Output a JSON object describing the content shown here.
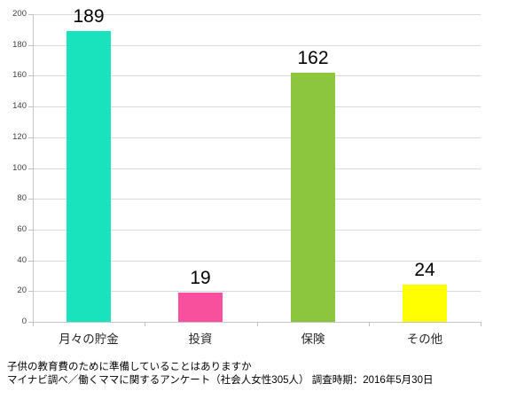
{
  "chart_data": {
    "type": "bar",
    "title": "",
    "categories": [
      "月々の貯金",
      "投資",
      "保険",
      "その他"
    ],
    "values": [
      189,
      19,
      162,
      24
    ],
    "value_labels": [
      "189",
      "19",
      "162",
      "24"
    ],
    "bar_colors": [
      "#19E3BC",
      "#F9509E",
      "#8CC63F",
      "#FFFF00"
    ],
    "xlabel": "",
    "ylabel": "",
    "ylim": [
      0,
      200
    ],
    "ytick_step": 20,
    "ytick_labels": [
      "0",
      "20",
      "40",
      "60",
      "80",
      "100",
      "120",
      "140",
      "160",
      "180",
      "200"
    ],
    "grid": true,
    "legend": false
  },
  "colors": {
    "background": "#FFFFFF",
    "gridline": "#D9D9D9",
    "axis": "#C6C6C6",
    "text": "#000000"
  },
  "footer": {
    "line1": "子供の教育費のために準備していることはありますか",
    "line2": "マイナビ調べ／働くママに関するアンケート（社会人女性305人） 調査時期：2016年5月30日"
  }
}
